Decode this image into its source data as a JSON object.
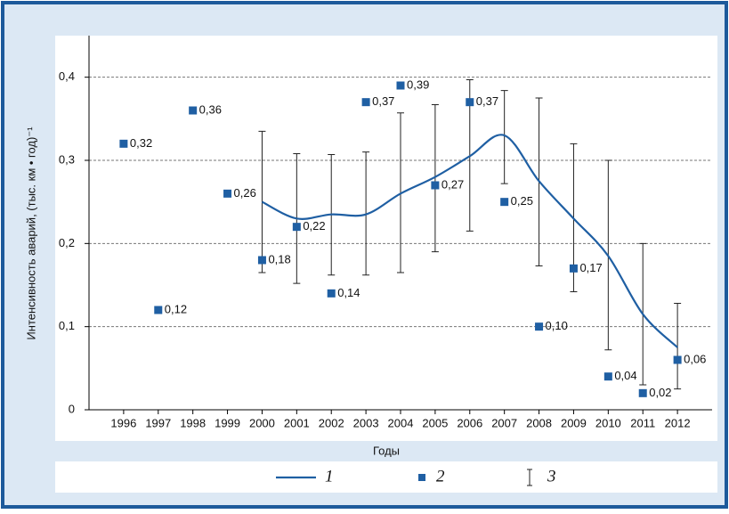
{
  "chart_data": {
    "type": "line",
    "y_label": "Интенсивность аварий, (тыс. км • год)⁻¹",
    "x_label": "Годы",
    "categories": [
      "1996",
      "1997",
      "1998",
      "1999",
      "2000",
      "2001",
      "2002",
      "2003",
      "2004",
      "2005",
      "2006",
      "2007",
      "2008",
      "2009",
      "2010",
      "2011",
      "2012"
    ],
    "ylim": [
      0,
      0.45
    ],
    "yticks": [
      0,
      {
        "value": 0.1,
        "label": "0,1"
      },
      {
        "value": 0.2,
        "label": "0,2"
      },
      {
        "value": 0.3,
        "label": "0,3"
      },
      {
        "value": 0.4,
        "label": "0,4"
      }
    ],
    "grid": true,
    "series": [
      {
        "name": "1",
        "type": "line",
        "color": "#1f5fa3",
        "values": [
          null,
          null,
          null,
          null,
          0.25,
          0.23,
          0.235,
          0.235,
          0.26,
          0.28,
          0.305,
          0.33,
          0.275,
          0.23,
          0.185,
          0.115,
          0.075
        ]
      },
      {
        "name": "2",
        "type": "scatter",
        "color": "#1f5fa3",
        "values": [
          0.32,
          0.12,
          0.36,
          0.26,
          0.18,
          0.22,
          0.14,
          0.37,
          0.39,
          0.27,
          0.37,
          0.25,
          0.1,
          0.17,
          0.04,
          0.02,
          0.06
        ],
        "value_labels": [
          "0,32",
          "0,12",
          "0,36",
          "0,26",
          "0,18",
          "0,22",
          "0,14",
          "0,37",
          "0,39",
          "0,27",
          "0,37",
          "0,25",
          "0,10",
          "0,17",
          "0,04",
          "0,02",
          "0,06"
        ]
      },
      {
        "name": "3",
        "type": "errorbar",
        "color": "#222222",
        "low": [
          null,
          null,
          null,
          null,
          0.165,
          0.152,
          0.162,
          0.162,
          0.165,
          0.19,
          0.215,
          0.272,
          0.173,
          0.142,
          0.072,
          0.03,
          0.025
        ],
        "high": [
          null,
          null,
          null,
          null,
          0.335,
          0.308,
          0.307,
          0.31,
          0.357,
          0.367,
          0.397,
          0.384,
          0.375,
          0.32,
          0.3,
          0.2,
          0.128
        ]
      }
    ]
  }
}
